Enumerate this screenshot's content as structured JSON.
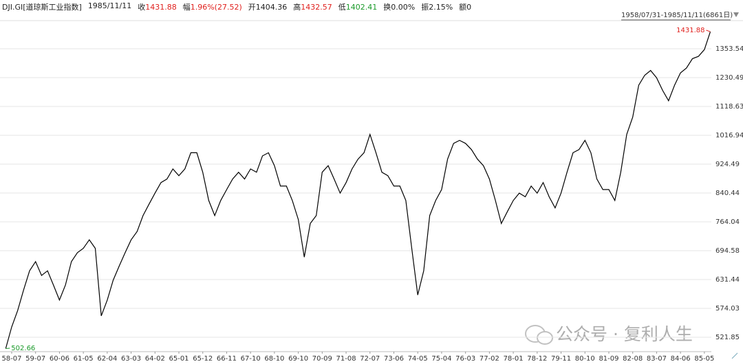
{
  "header": {
    "symbol": "DJI.GI[道琼斯工业指数]",
    "date": "1985/11/11",
    "fields": [
      {
        "label": "收",
        "value": "1431.88",
        "tone": "up"
      },
      {
        "label": "幅",
        "value": "1.96%(27.52)",
        "tone": "up"
      },
      {
        "label": "开",
        "value": "1404.36",
        "tone": "flat"
      },
      {
        "label": "高",
        "value": "1432.57",
        "tone": "up"
      },
      {
        "label": "低",
        "value": "1402.41",
        "tone": "down"
      },
      {
        "label": "换",
        "value": "0.00%",
        "tone": "flat"
      },
      {
        "label": "振",
        "value": "2.15%",
        "tone": "flat"
      },
      {
        "label": "额",
        "value": "0",
        "tone": "flat"
      }
    ]
  },
  "range": "1958/07/31-1985/11/11(6861日)",
  "watermark": "公众号 · 复利人生",
  "chart_data": {
    "type": "line",
    "color": "#000000",
    "log_scale": true,
    "grid": true,
    "categories": [
      null,
      "58-07",
      null,
      null,
      null,
      "59-07",
      null,
      null,
      null,
      "60-06",
      null,
      null,
      null,
      "61-05",
      null,
      null,
      null,
      "62-04",
      null,
      null,
      null,
      "63-03",
      null,
      null,
      null,
      "64-02",
      null,
      null,
      null,
      "65-01",
      null,
      null,
      null,
      "65-12",
      null,
      null,
      null,
      "66-11",
      null,
      null,
      null,
      "67-10",
      null,
      null,
      null,
      "68-10",
      null,
      null,
      null,
      "69-10",
      null,
      null,
      null,
      "70-09",
      null,
      null,
      null,
      "71-08",
      null,
      null,
      null,
      "72-07",
      null,
      null,
      null,
      "73-06",
      null,
      null,
      null,
      "74-05",
      null,
      null,
      null,
      "75-04",
      null,
      null,
      null,
      "76-03",
      null,
      null,
      null,
      "77-02",
      null,
      null,
      null,
      "78-01",
      null,
      null,
      null,
      "78-12",
      null,
      null,
      null,
      "79-11",
      null,
      null,
      null,
      "80-10",
      null,
      null,
      null,
      "81-09",
      null,
      null,
      null,
      "82-08",
      null,
      null,
      null,
      "83-07",
      null,
      null,
      null,
      "84-06",
      null,
      null,
      null,
      "85-05",
      null
    ],
    "values": [
      502.66,
      540,
      570,
      610,
      650,
      670,
      640,
      650,
      620,
      590,
      620,
      670,
      690,
      700,
      720,
      700,
      560,
      590,
      630,
      660,
      690,
      720,
      740,
      780,
      810,
      840,
      870,
      880,
      910,
      890,
      910,
      960,
      960,
      900,
      820,
      780,
      820,
      850,
      880,
      900,
      880,
      910,
      900,
      950,
      960,
      920,
      860,
      860,
      820,
      770,
      680,
      760,
      780,
      900,
      920,
      880,
      840,
      870,
      910,
      940,
      960,
      1020,
      960,
      900,
      890,
      860,
      860,
      820,
      700,
      600,
      650,
      780,
      820,
      850,
      940,
      990,
      1000,
      990,
      970,
      940,
      920,
      880,
      820,
      760,
      790,
      820,
      840,
      830,
      860,
      840,
      870,
      830,
      800,
      840,
      900,
      960,
      970,
      1000,
      960,
      880,
      850,
      850,
      820,
      900,
      1020,
      1080,
      1200,
      1240,
      1260,
      1230,
      1180,
      1140,
      1200,
      1250,
      1270,
      1310,
      1320,
      1350,
      1431.88
    ],
    "ylim": [
      497.6,
      1485.5
    ],
    "yticks": [
      521.85,
      574.03,
      631.44,
      694.58,
      764.04,
      840.44,
      924.49,
      1016.94,
      1118.63,
      1230.49,
      1353.54
    ]
  }
}
